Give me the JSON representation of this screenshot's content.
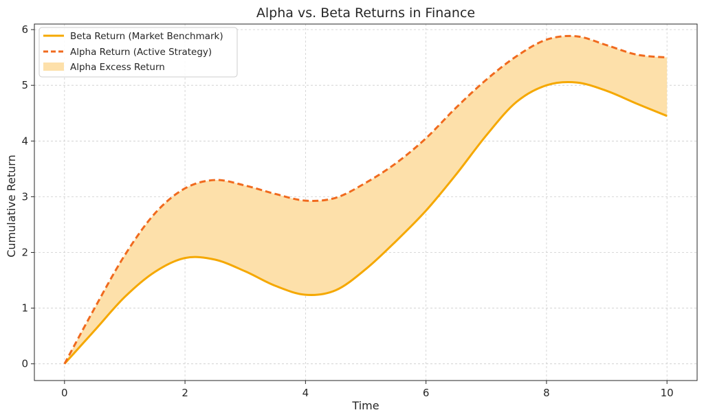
{
  "chart_data": {
    "type": "line",
    "title": "Alpha vs. Beta Returns in Finance",
    "xlabel": "Time",
    "ylabel": "Cumulative Return",
    "xlim": [
      -0.5,
      10.5
    ],
    "ylim": [
      -0.3,
      6.1
    ],
    "xticks": [
      0,
      2,
      4,
      6,
      8,
      10
    ],
    "yticks": [
      0,
      1,
      2,
      3,
      4,
      5,
      6
    ],
    "grid": true,
    "legend_position": "top-left",
    "x": [
      0,
      0.5,
      1,
      1.5,
      2,
      2.5,
      3,
      3.5,
      4,
      4.5,
      5,
      5.5,
      6,
      6.5,
      7,
      7.5,
      8,
      8.5,
      9,
      9.5,
      10
    ],
    "series": [
      {
        "name": "Beta Return (Market Benchmark)",
        "color": "#f5a800",
        "style": "solid",
        "values": [
          0,
          0.6,
          1.2,
          1.65,
          1.9,
          1.87,
          1.66,
          1.4,
          1.24,
          1.32,
          1.7,
          2.2,
          2.75,
          3.4,
          4.1,
          4.7,
          5.0,
          5.05,
          4.9,
          4.67,
          4.45
        ]
      },
      {
        "name": "Alpha Return (Active Strategy)",
        "color": "#f06a1e",
        "style": "dashed",
        "values": [
          0,
          1.0,
          1.95,
          2.7,
          3.15,
          3.3,
          3.2,
          3.05,
          2.93,
          2.98,
          3.25,
          3.6,
          4.05,
          4.6,
          5.1,
          5.52,
          5.82,
          5.88,
          5.72,
          5.55,
          5.5
        ]
      }
    ],
    "fill": {
      "name": "Alpha Excess Return",
      "between": [
        "Beta Return (Market Benchmark)",
        "Alpha Return (Active Strategy)"
      ],
      "color": "#fde0aa"
    }
  }
}
